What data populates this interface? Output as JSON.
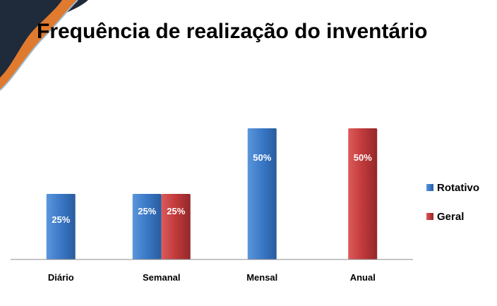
{
  "slide": {
    "title": "Frequência de realização do inventário"
  },
  "colors": {
    "corner_dark": "#1f2a3a",
    "corner_orange": "#e07a2e",
    "corner_line": "#9fb8c9"
  },
  "chart_data": {
    "type": "bar",
    "title": "",
    "xlabel": "",
    "ylabel": "",
    "ylim": [
      0,
      50
    ],
    "grid": false,
    "legend_position": "right",
    "categories": [
      "Diário",
      "Semanal",
      "Mensal",
      "Anual"
    ],
    "series": [
      {
        "name": "Rotativo",
        "color": "#3a78c6",
        "values": [
          25,
          25,
          50,
          null
        ]
      },
      {
        "name": "Geral",
        "color": "#c0393b",
        "values": [
          null,
          25,
          null,
          50
        ]
      }
    ],
    "value_labels": [
      [
        "25%",
        "25%",
        "50%",
        null
      ],
      [
        null,
        "25%",
        null,
        "50%"
      ]
    ]
  }
}
